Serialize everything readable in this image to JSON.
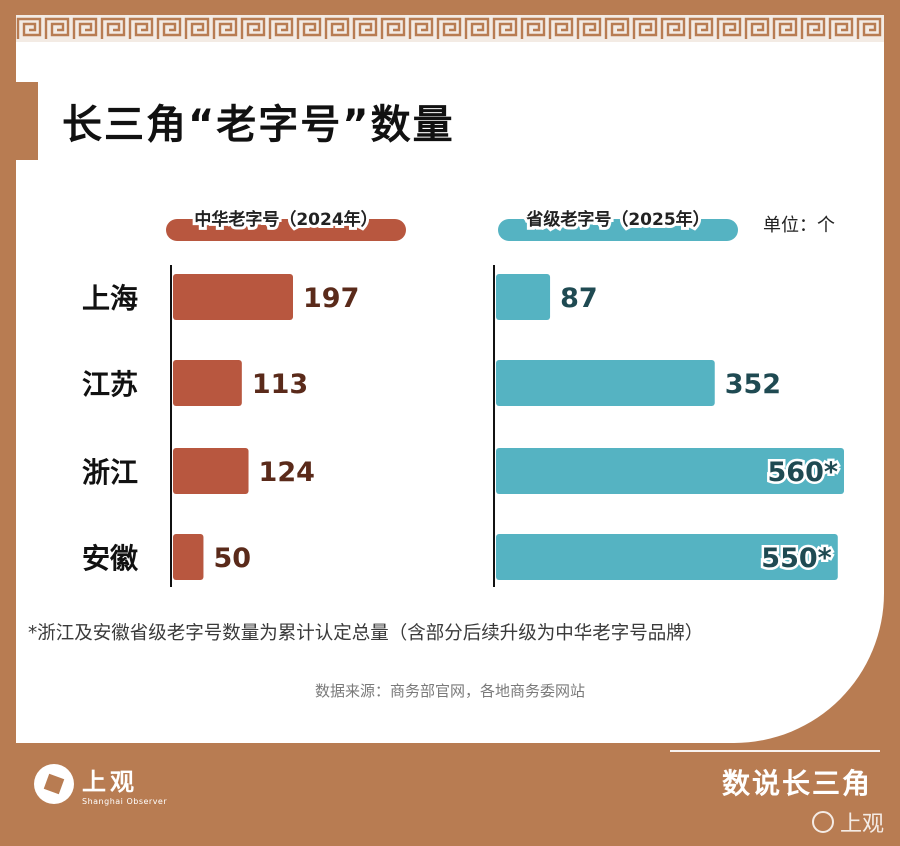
{
  "title": "长三角“老字号”数量",
  "unit_label": "单位：个",
  "note": "*浙江及安徽省级老字号数量为累计认定总量（含部分后续升级为中华老字号品牌）",
  "source": "数据来源：商务部官网，各地商务委网站",
  "brand": {
    "name": "上观",
    "sub": "Shanghai Observer"
  },
  "series_tag": "数说长三角",
  "watermark": "上观",
  "colors": {
    "frame": "#b87c52",
    "china_series": "#b8573f",
    "province_series": "#55b3c2",
    "china_text": "#5a2a1a",
    "province_text": "#1f4a52"
  },
  "chart_data": {
    "type": "bar",
    "orientation": "horizontal",
    "categories": [
      "上海",
      "江苏",
      "浙江",
      "安徽"
    ],
    "series": [
      {
        "name": "中华老字号（2024年）",
        "values": [
          197,
          113,
          124,
          50
        ],
        "labels": [
          "197",
          "113",
          "124",
          "50"
        ]
      },
      {
        "name": "省级老字号（2025年）",
        "values": [
          87,
          352,
          560,
          550
        ],
        "labels": [
          "87",
          "352",
          "560*",
          "550*"
        ]
      }
    ]
  }
}
